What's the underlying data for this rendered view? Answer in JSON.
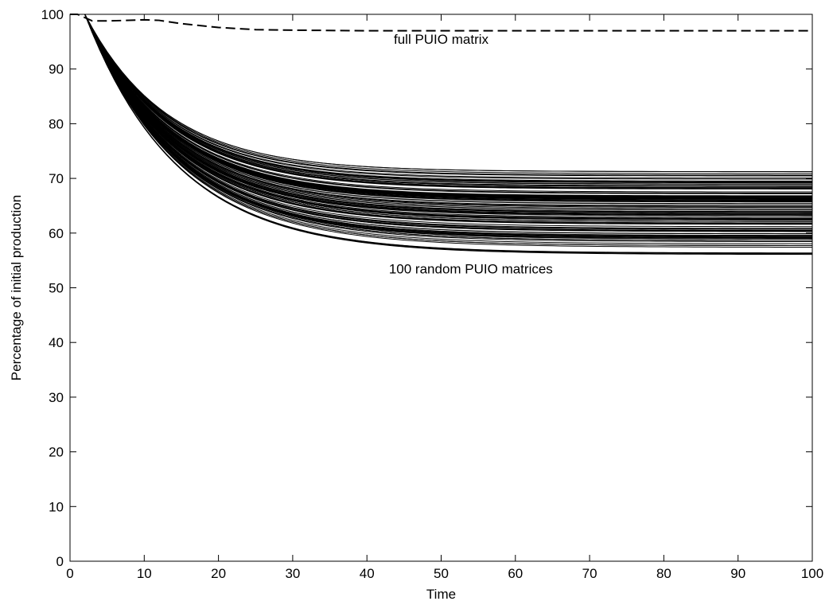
{
  "chart_data": {
    "type": "line",
    "title": "",
    "xlabel": "Time",
    "ylabel": "Percentage of initial production",
    "xlim": [
      0,
      100
    ],
    "ylim": [
      0,
      100
    ],
    "xticks": [
      0,
      10,
      20,
      30,
      40,
      50,
      60,
      70,
      80,
      90,
      100
    ],
    "yticks": [
      0,
      10,
      20,
      30,
      40,
      50,
      60,
      70,
      80,
      90,
      100
    ],
    "grid": false,
    "legend": "none",
    "annotations": [
      {
        "text": "full PUIO matrix",
        "x": 50,
        "y": 95.5
      },
      {
        "text": "100 random PUIO matrices",
        "x": 54,
        "y": 53.5
      }
    ],
    "series": [
      {
        "style": "dashed",
        "color": "#000000",
        "x": [
          0,
          1,
          2,
          3,
          5,
          8,
          10,
          12,
          15,
          20,
          25,
          30,
          40,
          50,
          60,
          70,
          80,
          90,
          100
        ],
        "y": [
          100,
          100,
          99.4,
          98.8,
          98.8,
          98.9,
          99.0,
          98.9,
          98.3,
          97.6,
          97.2,
          97.1,
          97.0,
          97.0,
          97.0,
          97.0,
          97.0,
          97.0,
          97.0
        ]
      }
    ],
    "random_series": {
      "count": 100,
      "color": "#000000",
      "style": "solid",
      "final_min": 56,
      "final_max": 71.3,
      "value_at_14_min": 77,
      "value_at_14_max": 81
    }
  }
}
